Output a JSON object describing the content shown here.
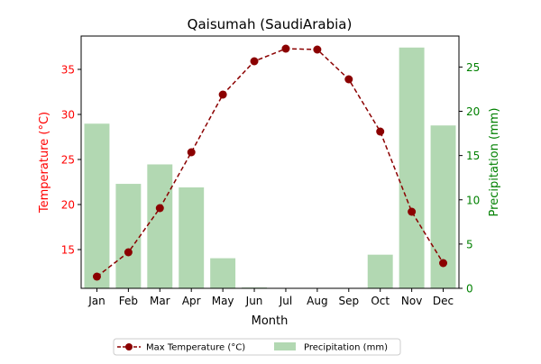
{
  "chart_data": {
    "type": "bar",
    "title": "Qaisumah (SaudiArabia)",
    "xlabel": "Month",
    "ylabel_left": "Temperature (°C)",
    "ylabel_right": "Precipitation (mm)",
    "categories": [
      "Jan",
      "Feb",
      "Mar",
      "Apr",
      "May",
      "Jun",
      "Jul",
      "Aug",
      "Sep",
      "Oct",
      "Nov",
      "Dec"
    ],
    "y_left_ticks": [
      15,
      20,
      25,
      30,
      35
    ],
    "y_right_ticks": [
      0,
      5,
      10,
      15,
      20,
      25
    ],
    "ylim_left": [
      10.7,
      38.7
    ],
    "ylim_right": [
      0,
      28.5
    ],
    "series": [
      {
        "name": "Max Temperature (°C)",
        "type": "line",
        "axis": "left",
        "color": "#8b0000",
        "values": [
          12.0,
          14.7,
          19.6,
          25.8,
          32.2,
          35.9,
          37.3,
          37.2,
          33.9,
          28.1,
          19.2,
          13.5
        ]
      },
      {
        "name": "Precipitation (mm)",
        "type": "bar",
        "axis": "right",
        "color": "#b2d8b2",
        "values": [
          18.6,
          11.8,
          14.0,
          11.4,
          3.4,
          0.1,
          0.0,
          0.0,
          0.0,
          3.8,
          27.2,
          18.4
        ]
      }
    ],
    "left_axis_color": "#ff0000",
    "right_axis_color": "#008000",
    "legend_position": "bottom-center",
    "grid": false
  }
}
